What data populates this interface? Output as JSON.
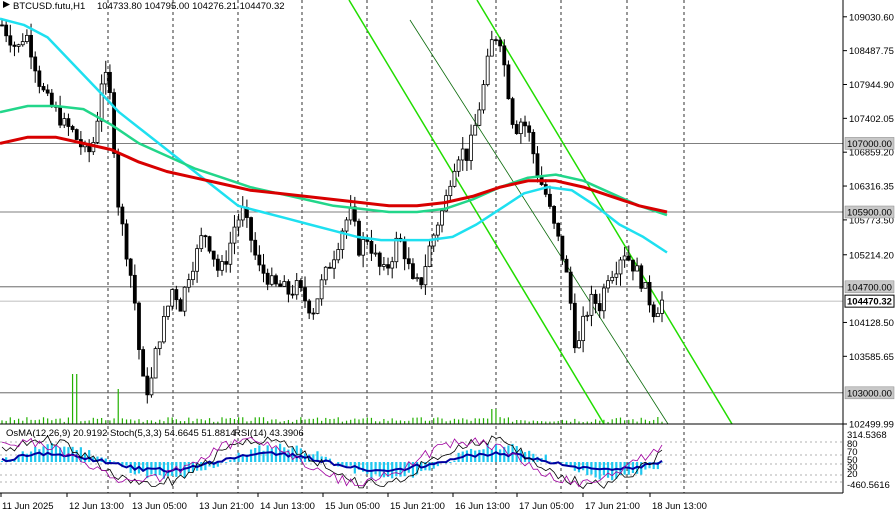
{
  "header": {
    "symbol_label": "BTCUSD.futu,H1",
    "ohlc_label": "104733.80 104795.00 104276.21 104470.32"
  },
  "indicator_header": {
    "osma_label": "OsMA(12,26,9) 20.9192",
    "stoch_label": "Stoch(5,3,3) 54.6645 51.8814",
    "rsi_label": "RSI(14) 43.3906"
  },
  "colors": {
    "candle": "#000000",
    "ma_fast": "#1ee0f0",
    "ma_mid": "#22d68a",
    "ma_slow": "#d80000",
    "channel": "#22dd00",
    "grid": "#000000",
    "osma": "#1ec8f0",
    "stoch_main": "#0000a0",
    "stoch_signal": "#000000"
  },
  "chart_data": {
    "type": "candlestick",
    "timeframe": "H1",
    "ylim": [
      102499.99,
      109300
    ],
    "y_ticks": [
      109030.6,
      108487.75,
      107944.9,
      107402.05,
      106859.2,
      106316.35,
      105773.5,
      105214.2,
      104128.5,
      103585.65,
      102499.99
    ],
    "y_tick_labels": [
      "109030.60",
      "108487.75",
      "107944.90",
      "107402.05",
      "106859.20",
      "106316.35",
      "105773.50",
      "105214.20",
      "104128.50",
      "103585.65",
      "102499.99"
    ],
    "price_levels": [
      {
        "value": 107000.0,
        "label": "107000.00"
      },
      {
        "value": 105900.0,
        "label": "105900.00"
      },
      {
        "value": 104700.0,
        "label": "104700.00"
      },
      {
        "value": 103000.0,
        "label": "103000.00"
      }
    ],
    "current_price": {
      "value": 104470.32,
      "label": "104470.32"
    },
    "x_labels": [
      "11 Jun 2025",
      "12 Jun 13:00",
      "13 Jun 05:00",
      "13 Jun 21:00",
      "14 Jun 13:00",
      "15 Jun 05:00",
      "15 Jun 21:00",
      "16 Jun 13:00",
      "17 Jun 05:00",
      "17 Jun 21:00",
      "18 Jun 13:00"
    ],
    "close_path": [
      108900,
      108700,
      108500,
      108800,
      108400,
      107900,
      107650,
      107500,
      107300,
      107200,
      107000,
      106800,
      107100,
      108200,
      107700,
      106000,
      105300,
      104600,
      103200,
      103000,
      103800,
      104200,
      104700,
      104400,
      104900,
      105200,
      105600,
      105300,
      104900,
      105200,
      105700,
      105900,
      105500,
      105000,
      104900,
      104700,
      104700,
      104600,
      104700,
      104500,
      104300,
      104700,
      105000,
      105300,
      105700,
      105900,
      105300,
      105500,
      105200,
      104900,
      105100,
      105500,
      105200,
      104700,
      104800,
      105300,
      105700,
      106000,
      106600,
      106900,
      106800,
      107300,
      107900,
      108600,
      108800,
      108000,
      107200,
      107400,
      107100,
      106500,
      106200,
      105700,
      105300,
      104700,
      103600,
      104200,
      104500,
      104400,
      104900,
      105000,
      105300,
      105100,
      104900,
      104600,
      104300,
      104470.32
    ],
    "series": [
      {
        "name": "",
        "role": "fast",
        "values": [
          109000,
          108900,
          108700,
          108300,
          107900,
          107500,
          107200,
          106900,
          106600,
          106300,
          106000,
          105900,
          105800,
          105700,
          105600,
          105500,
          105450,
          105450,
          105450,
          105500,
          105700,
          105950,
          106200,
          106300,
          106250,
          106000,
          105700,
          105500,
          105250
        ]
      },
      {
        "name": "",
        "role": "mid",
        "values": [
          107500,
          107600,
          107600,
          107550,
          107300,
          107000,
          106800,
          106600,
          106450,
          106300,
          106200,
          106100,
          106000,
          105950,
          105900,
          105900,
          105950,
          106100,
          106300,
          106450,
          106500,
          106400,
          106200,
          106000,
          105850
        ]
      },
      {
        "name": "",
        "role": "slow",
        "values": [
          107000,
          107100,
          107100,
          107000,
          106900,
          106700,
          106550,
          106450,
          106350,
          106250,
          106200,
          106150,
          106100,
          106050,
          106000,
          106000,
          106050,
          106150,
          106300,
          106400,
          106400,
          106300,
          106150,
          106000,
          105900
        ]
      }
    ],
    "osma_range": [
      -460.5616,
      314.5368
    ],
    "osma_labels": [
      "314.5368",
      "-460.5616"
    ],
    "rsi_levels": [
      70,
      50,
      30
    ],
    "stoch_levels": [
      80,
      20
    ]
  }
}
